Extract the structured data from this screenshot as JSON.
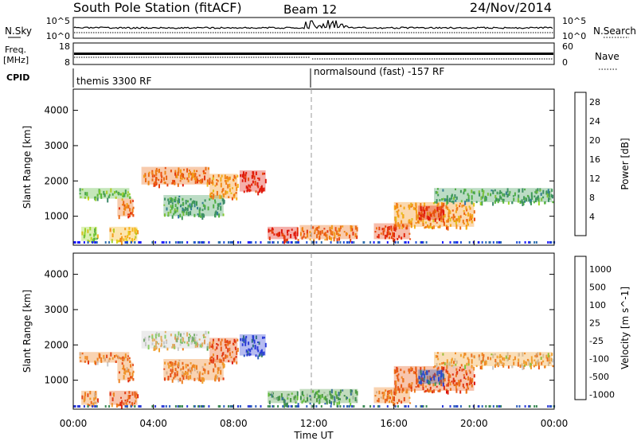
{
  "header": {
    "station": "South Pole Station (fitACF)",
    "beam": "Beam 12",
    "date": "24/Nov/2014"
  },
  "colors": {
    "power_scale": [
      "#1a1aff",
      "#1e4fd8",
      "#2e6fb0",
      "#3d8a6a",
      "#3f9a58",
      "#58b83a",
      "#9ad52c",
      "#d8d81c",
      "#f5b51a",
      "#f39018",
      "#ec6a14",
      "#e8420e",
      "#e01a0c"
    ],
    "velocity_scale": [
      "#2a3bd8",
      "#2f5fbf",
      "#3a8a55",
      "#4f9c44",
      "#6ccc38",
      "#c9c9c9",
      "#f0a030",
      "#ee8020",
      "#e85a18",
      "#e02a12",
      "#d81010"
    ],
    "fill_dark": "#000000"
  },
  "strips": {
    "nsky": {
      "left_label": "N.Sky",
      "left_ticks": [
        "10^5",
        "10^0"
      ],
      "right_ticks": [
        "10^5",
        "10^0"
      ],
      "right_label": "N.Search"
    },
    "freq": {
      "left_label_1": "Freq.",
      "left_label_2": "[MHz]",
      "left_ticks": [
        "18",
        "8"
      ],
      "right_ticks": [
        "60",
        "0"
      ],
      "right_label": "Nave"
    },
    "cpid": {
      "label": "CPID",
      "segments": [
        {
          "start": "00:00",
          "text": "themis 3300 RF"
        },
        {
          "start": "12:00",
          "text": "normalsound (fast) -157 RF"
        }
      ]
    }
  },
  "chart_data": [
    {
      "type": "heatmap",
      "name": "Power",
      "xlabel": "",
      "ylabel": "Slant Range [km]",
      "y_ticks": [
        1000,
        2000,
        3000,
        4000
      ],
      "x_ticks": [
        "00:00",
        "04:00",
        "08:00",
        "12:00",
        "16:00",
        "20:00",
        "00:00"
      ],
      "xlim_hours": [
        0,
        24
      ],
      "ylim_km": [
        180,
        4600
      ],
      "colorbar": {
        "label": "Power [dB]",
        "ticks": [
          4,
          8,
          12,
          16,
          20,
          24,
          28
        ],
        "range": [
          0,
          30
        ]
      },
      "echo_regions": [
        {
          "t0": 0.3,
          "t1": 2.8,
          "r0": 1500,
          "r1": 1800,
          "level": 5
        },
        {
          "t0": 0.4,
          "t1": 1.2,
          "r0": 300,
          "r1": 700,
          "level": 6
        },
        {
          "t0": 1.8,
          "t1": 3.2,
          "r0": 300,
          "r1": 700,
          "level": 8
        },
        {
          "t0": 2.2,
          "t1": 3.0,
          "r0": 1000,
          "r1": 1500,
          "level": 10
        },
        {
          "t0": 3.4,
          "t1": 6.8,
          "r0": 1900,
          "r1": 2400,
          "level": 10
        },
        {
          "t0": 4.5,
          "t1": 7.5,
          "r0": 1000,
          "r1": 1600,
          "level": 4
        },
        {
          "t0": 6.8,
          "t1": 8.2,
          "r0": 1500,
          "r1": 2200,
          "level": 9
        },
        {
          "t0": 8.3,
          "t1": 9.6,
          "r0": 1700,
          "r1": 2300,
          "level": 12
        },
        {
          "t0": 9.7,
          "t1": 11.2,
          "r0": 350,
          "r1": 700,
          "level": 12
        },
        {
          "t0": 11.3,
          "t1": 14.2,
          "r0": 350,
          "r1": 750,
          "level": 10
        },
        {
          "t0": 15.0,
          "t1": 16.8,
          "r0": 350,
          "r1": 800,
          "level": 11
        },
        {
          "t0": 16.0,
          "t1": 20.0,
          "r0": 700,
          "r1": 1400,
          "level": 9
        },
        {
          "t0": 17.2,
          "t1": 18.5,
          "r0": 900,
          "r1": 1300,
          "level": 12
        },
        {
          "t0": 18.0,
          "t1": 23.9,
          "r0": 1400,
          "r1": 1800,
          "level": 4
        }
      ]
    },
    {
      "type": "heatmap",
      "name": "Velocity",
      "xlabel": "Time UT",
      "ylabel": "Slant Range [km]",
      "y_ticks": [
        1000,
        2000,
        3000,
        4000
      ],
      "x_ticks": [
        "00:00",
        "04:00",
        "08:00",
        "12:00",
        "16:00",
        "20:00",
        "00:00"
      ],
      "xlim_hours": [
        0,
        24
      ],
      "ylim_km": [
        180,
        4600
      ],
      "colorbar": {
        "label": "Velocity [m s^-1]",
        "ticks": [
          1000,
          500,
          100,
          25,
          -25,
          -100,
          -500,
          -1000
        ]
      },
      "echo_regions": [
        {
          "t0": 0.3,
          "t1": 2.8,
          "r0": 1500,
          "r1": 1800,
          "level": 7
        },
        {
          "t0": 0.4,
          "t1": 1.2,
          "r0": 300,
          "r1": 700,
          "level": 7
        },
        {
          "t0": 1.8,
          "t1": 3.2,
          "r0": 300,
          "r1": 700,
          "level": 8
        },
        {
          "t0": 2.2,
          "t1": 3.0,
          "r0": 1000,
          "r1": 1500,
          "level": 7
        },
        {
          "t0": 3.4,
          "t1": 6.8,
          "r0": 1900,
          "r1": 2400,
          "level": 5
        },
        {
          "t0": 4.5,
          "t1": 7.5,
          "r0": 1000,
          "r1": 1600,
          "level": 7
        },
        {
          "t0": 6.8,
          "t1": 8.2,
          "r0": 1500,
          "r1": 2200,
          "level": 8
        },
        {
          "t0": 8.3,
          "t1": 9.6,
          "r0": 1700,
          "r1": 2300,
          "level": 0
        },
        {
          "t0": 9.7,
          "t1": 11.2,
          "r0": 350,
          "r1": 700,
          "level": 3
        },
        {
          "t0": 11.3,
          "t1": 14.2,
          "r0": 350,
          "r1": 750,
          "level": 3
        },
        {
          "t0": 15.0,
          "t1": 16.8,
          "r0": 350,
          "r1": 800,
          "level": 7
        },
        {
          "t0": 16.0,
          "t1": 20.0,
          "r0": 700,
          "r1": 1400,
          "level": 8
        },
        {
          "t0": 17.2,
          "t1": 18.5,
          "r0": 900,
          "r1": 1300,
          "level": 1
        },
        {
          "t0": 18.0,
          "t1": 23.9,
          "r0": 1400,
          "r1": 1800,
          "level": 6
        }
      ]
    }
  ]
}
